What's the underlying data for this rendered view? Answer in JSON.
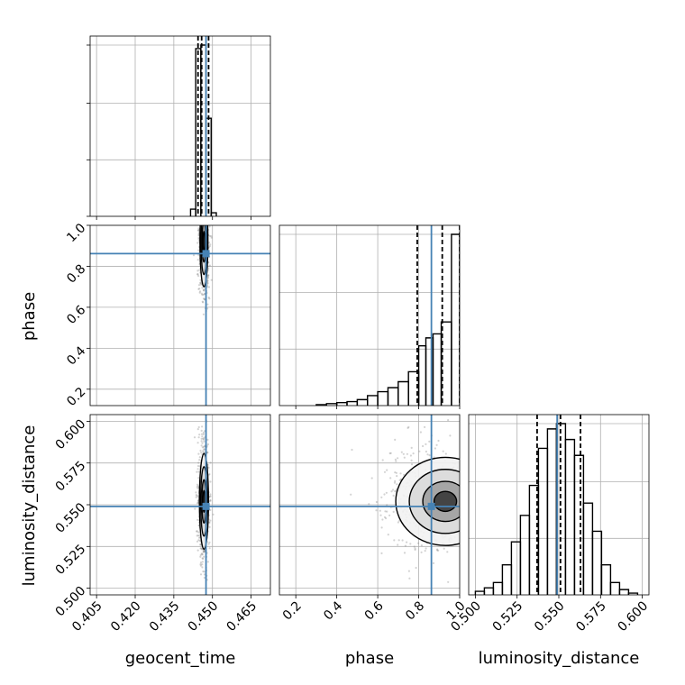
{
  "chart_data": {
    "type": "corner",
    "parameters": [
      "geocent_time",
      "phase",
      "luminosity_distance"
    ],
    "truth": {
      "geocent_time": 0.4475,
      "phase": 0.862,
      "luminosity_distance": 0.549
    },
    "colors": {
      "truth": "#4682b4",
      "line": "#000000",
      "grid": "#b0b0b0",
      "scatter": "#808080"
    },
    "grid": true,
    "marginals": [
      {
        "parameter": "geocent_time",
        "range": [
          0.4025,
          0.4725
        ],
        "ticks": [
          0.405,
          0.42,
          0.435,
          0.45,
          0.465
        ],
        "tick_labels": [
          "0.405",
          "0.420",
          "0.435",
          "0.450",
          "0.465"
        ],
        "bin_edges": [
          0.4415,
          0.4435,
          0.4455,
          0.4475,
          0.4495,
          0.4515
        ],
        "density": [
          0.04,
          0.94,
          0.96,
          0.55,
          0.02
        ],
        "quantiles": [
          0.4444,
          0.4458,
          0.4485
        ]
      },
      {
        "parameter": "phase",
        "range": [
          0.12,
          1.0
        ],
        "ticks": [
          0.2,
          0.4,
          0.6,
          0.8,
          1.0
        ],
        "tick_labels": [
          "0.2",
          "0.4",
          "0.6",
          "0.8",
          "1.0"
        ],
        "bin_edges": [
          0.3,
          0.35,
          0.4,
          0.45,
          0.5,
          0.55,
          0.6,
          0.65,
          0.7,
          0.75,
          0.8,
          0.835,
          0.87,
          0.91,
          0.96,
          1.0
        ],
        "density": [
          0.005,
          0.01,
          0.015,
          0.02,
          0.03,
          0.05,
          0.07,
          0.09,
          0.12,
          0.17,
          0.3,
          0.34,
          0.36,
          0.42,
          0.86
        ],
        "quantiles": [
          0.793,
          0.915,
          1.0
        ]
      },
      {
        "parameter": "luminosity_distance",
        "range": [
          0.496,
          0.604
        ],
        "ticks": [
          0.5,
          0.525,
          0.55,
          0.575,
          0.6
        ],
        "tick_labels": [
          "0.500",
          "0.525",
          "0.550",
          "0.575",
          "0.600"
        ],
        "bin_edges": [
          0.5,
          0.5054,
          0.5108,
          0.5162,
          0.5216,
          0.527,
          0.5324,
          0.5378,
          0.5432,
          0.5486,
          0.554,
          0.5594,
          0.5648,
          0.5702,
          0.5756,
          0.581,
          0.5864,
          0.5918,
          0.5972
        ],
        "density": [
          0.02,
          0.04,
          0.07,
          0.17,
          0.3,
          0.45,
          0.62,
          0.83,
          0.94,
          0.97,
          0.88,
          0.79,
          0.52,
          0.36,
          0.17,
          0.07,
          0.03,
          0.01
        ],
        "quantiles": [
          0.537,
          0.551,
          0.563
        ]
      }
    ],
    "pairs": [
      {
        "x": "geocent_time",
        "y": "phase"
      },
      {
        "x": "geocent_time",
        "y": "luminosity_distance"
      },
      {
        "x": "phase",
        "y": "luminosity_distance"
      }
    ],
    "blobs": {
      "geocent_time|phase": {
        "cx": 0.4467,
        "cy": 0.92,
        "sx": 0.0007,
        "sy": 0.1
      },
      "geocent_time|luminosity_distance": {
        "cx": 0.4467,
        "cy": 0.552,
        "sx": 0.0008,
        "sy": 0.013
      },
      "phase|luminosity_distance": {
        "cx": 0.93,
        "cy": 0.552,
        "sx": 0.11,
        "sy": 0.012
      }
    },
    "y_ticks": {
      "phase": {
        "ticks": [
          0.2,
          0.4,
          0.6,
          0.8,
          1.0
        ],
        "tick_labels": [
          "0.2",
          "0.4",
          "0.6",
          "0.8",
          "1.0"
        ],
        "range": [
          0.12,
          1.0
        ]
      },
      "luminosity_distance": {
        "ticks": [
          0.5,
          0.525,
          0.55,
          0.575,
          0.6
        ],
        "tick_labels": [
          "0.500",
          "0.525",
          "0.550",
          "0.575",
          "0.600"
        ],
        "range": [
          0.496,
          0.604
        ]
      }
    }
  }
}
